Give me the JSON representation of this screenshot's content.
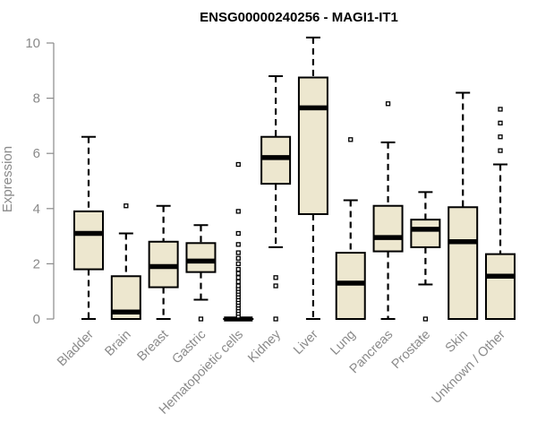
{
  "chart_data": {
    "type": "boxplot",
    "title": "ENSG00000240256 - MAGI1-IT1",
    "xlabel": "",
    "ylabel": "Expression",
    "ylim": [
      0,
      10.2
    ],
    "yticks": [
      0,
      2,
      4,
      6,
      8,
      10
    ],
    "box_fill": "#ede7cf",
    "categories": [
      "Bladder",
      "Brain",
      "Breast",
      "Gastric",
      "Hematopoietic cells",
      "Kidney",
      "Liver",
      "Lung",
      "Pancreas",
      "Prostate",
      "Skin",
      "Unknown / Other"
    ],
    "series": [
      {
        "name": "Bladder",
        "whisker_low": 0,
        "q1": 1.8,
        "median": 3.1,
        "q3": 3.9,
        "whisker_high": 6.6,
        "outliers": []
      },
      {
        "name": "Brain",
        "whisker_low": 0,
        "q1": 0,
        "median": 0.25,
        "q3": 1.55,
        "whisker_high": 3.1,
        "outliers": [
          4.1
        ]
      },
      {
        "name": "Breast",
        "whisker_low": 0,
        "q1": 1.15,
        "median": 1.9,
        "q3": 2.8,
        "whisker_high": 4.1,
        "outliers": []
      },
      {
        "name": "Gastric",
        "whisker_low": 0.7,
        "q1": 1.7,
        "median": 2.1,
        "q3": 2.75,
        "whisker_high": 3.4,
        "outliers": [
          0
        ]
      },
      {
        "name": "Hematopoietic cells",
        "whisker_low": 0,
        "q1": 0,
        "median": 0,
        "q3": 0,
        "whisker_high": 0,
        "outliers": [
          0.1,
          0.2,
          0.3,
          0.4,
          0.5,
          0.6,
          0.7,
          0.8,
          0.9,
          1.0,
          1.1,
          1.2,
          1.35,
          1.5,
          1.65,
          1.8,
          2.0,
          2.2,
          2.4,
          2.7,
          3.1,
          3.9,
          5.6
        ]
      },
      {
        "name": "Kidney",
        "whisker_low": 2.6,
        "q1": 4.9,
        "median": 5.85,
        "q3": 6.6,
        "whisker_high": 8.8,
        "outliers": [
          1.2,
          1.5,
          0
        ]
      },
      {
        "name": "Liver",
        "whisker_low": 0,
        "q1": 3.8,
        "median": 7.65,
        "q3": 8.75,
        "whisker_high": 10.2,
        "outliers": []
      },
      {
        "name": "Lung",
        "whisker_low": 0,
        "q1": 0,
        "median": 1.3,
        "q3": 2.4,
        "whisker_high": 4.3,
        "outliers": [
          6.5
        ]
      },
      {
        "name": "Pancreas",
        "whisker_low": 0,
        "q1": 2.45,
        "median": 2.95,
        "q3": 4.1,
        "whisker_high": 6.4,
        "outliers": [
          7.8
        ]
      },
      {
        "name": "Prostate",
        "whisker_low": 1.25,
        "q1": 2.6,
        "median": 3.25,
        "q3": 3.6,
        "whisker_high": 4.6,
        "outliers": [
          0
        ]
      },
      {
        "name": "Skin",
        "whisker_low": 0,
        "q1": 0,
        "median": 2.8,
        "q3": 4.05,
        "whisker_high": 8.2,
        "outliers": []
      },
      {
        "name": "Unknown / Other",
        "whisker_low": 0,
        "q1": 0,
        "median": 1.55,
        "q3": 2.35,
        "whisker_high": 5.6,
        "outliers": [
          6.1,
          6.6,
          7.1,
          7.6
        ]
      }
    ]
  }
}
